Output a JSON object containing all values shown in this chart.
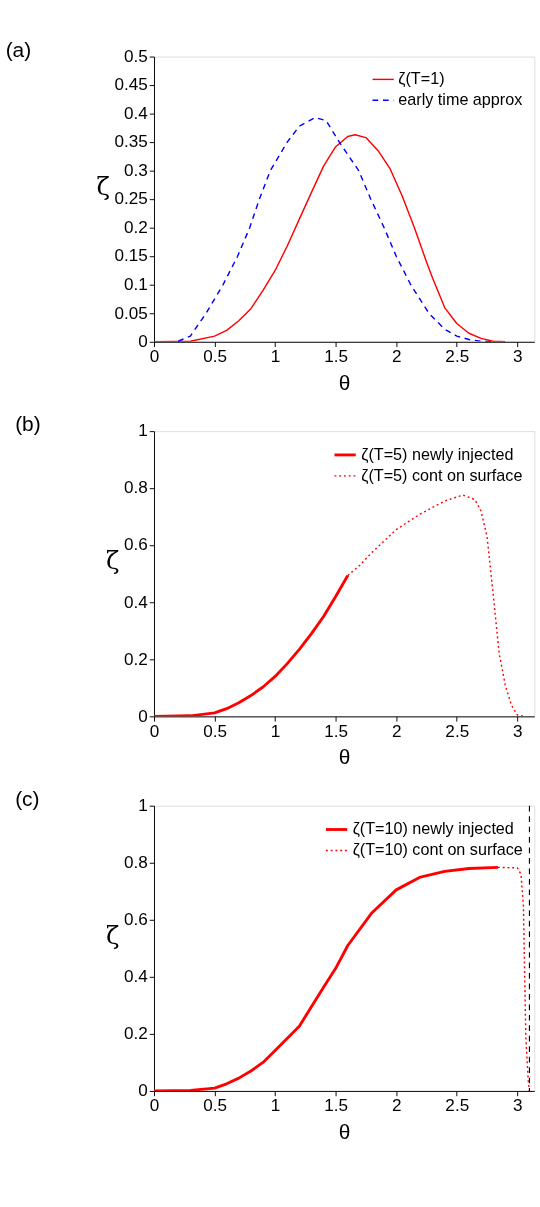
{
  "chart_data": [
    {
      "type": "line",
      "title": "(a)",
      "xlabel": "θ",
      "ylabel": "ζ",
      "xlim": [
        0,
        3.14
      ],
      "xticks": [
        0,
        0.5,
        1,
        1.5,
        2,
        2.5,
        3
      ],
      "ylim": [
        0,
        0.5
      ],
      "yticks": [
        0,
        0.05,
        0.1,
        0.15,
        0.2,
        0.25,
        0.3,
        0.35,
        0.4,
        0.45,
        0.5
      ],
      "grid": false,
      "legend": "top right",
      "series": [
        {
          "name": "ζ(T=1)",
          "color": "#ff0000",
          "line_style": "solid",
          "x": [
            0,
            0.3,
            0.5,
            0.6,
            0.7,
            0.8,
            0.9,
            1.0,
            1.1,
            1.2,
            1.3,
            1.4,
            1.5,
            1.6,
            1.66,
            1.75,
            1.85,
            1.95,
            2.05,
            2.15,
            2.25,
            2.3,
            2.4,
            2.5,
            2.6,
            2.7,
            2.8,
            2.9
          ],
          "values": [
            0,
            0.001,
            0.01,
            0.02,
            0.037,
            0.058,
            0.09,
            0.125,
            0.168,
            0.215,
            0.262,
            0.308,
            0.342,
            0.36,
            0.363,
            0.358,
            0.335,
            0.303,
            0.255,
            0.2,
            0.14,
            0.112,
            0.06,
            0.032,
            0.015,
            0.006,
            0.001,
            0
          ]
        },
        {
          "name": "early time approx",
          "color": "#0000ff",
          "line_style": "dashed",
          "x": [
            0.2,
            0.3,
            0.43,
            0.57,
            0.69,
            0.79,
            0.87,
            0.96,
            1.1,
            1.2,
            1.33,
            1.42,
            1.53,
            1.69,
            1.79,
            1.9,
            2.0,
            2.12,
            2.27,
            2.4,
            2.5,
            2.6,
            2.7,
            2.8
          ],
          "values": [
            0.001,
            0.01,
            0.05,
            0.1,
            0.15,
            0.2,
            0.25,
            0.3,
            0.35,
            0.378,
            0.393,
            0.388,
            0.35,
            0.3,
            0.25,
            0.2,
            0.15,
            0.1,
            0.05,
            0.022,
            0.01,
            0.004,
            0.001,
            0
          ]
        }
      ]
    },
    {
      "type": "line",
      "title": "(b)",
      "xlabel": "θ",
      "ylabel": "ζ",
      "xlim": [
        0,
        3.14
      ],
      "xticks": [
        0,
        0.5,
        1,
        1.5,
        2,
        2.5,
        3
      ],
      "ylim": [
        0,
        1
      ],
      "yticks": [
        0,
        0.2,
        0.4,
        0.6,
        0.8,
        1
      ],
      "grid": false,
      "legend": "top right",
      "series": [
        {
          "name": "ζ(T=5) newly injected",
          "color": "#ff0000",
          "line_style": "solid",
          "x": [
            0,
            0.3,
            0.5,
            0.6,
            0.7,
            0.8,
            0.9,
            1.0,
            1.1,
            1.2,
            1.3,
            1.4,
            1.5,
            1.6
          ],
          "values": [
            0,
            0.002,
            0.012,
            0.027,
            0.048,
            0.073,
            0.103,
            0.14,
            0.185,
            0.235,
            0.29,
            0.35,
            0.42,
            0.494
          ]
        },
        {
          "name": "ζ(T=5) cont on surface",
          "color": "#ff0000",
          "line_style": "dotted",
          "x": [
            1.6,
            1.7,
            1.8,
            2.0,
            2.2,
            2.4,
            2.55,
            2.65,
            2.7,
            2.75,
            2.8,
            2.85,
            2.9,
            2.95,
            3.0,
            3.05
          ],
          "values": [
            0.494,
            0.53,
            0.575,
            0.655,
            0.71,
            0.755,
            0.776,
            0.76,
            0.72,
            0.63,
            0.43,
            0.22,
            0.11,
            0.04,
            0.005,
            0
          ]
        }
      ]
    },
    {
      "type": "line",
      "title": "(c)",
      "xlabel": "θ",
      "ylabel": "ζ",
      "xlim": [
        0,
        3.14
      ],
      "xticks": [
        0,
        0.5,
        1,
        1.5,
        2,
        2.5,
        3
      ],
      "ylim": [
        0,
        1
      ],
      "yticks": [
        0,
        0.2,
        0.4,
        0.6,
        0.8,
        1
      ],
      "grid": false,
      "legend": "top right",
      "ref_lines": [
        {
          "axis": "x",
          "value": 3.1,
          "color": "#000000",
          "line_style": "dashed"
        }
      ],
      "series": [
        {
          "name": "ζ(T=10) newly injected",
          "color": "#ff0000",
          "line_style": "solid",
          "x": [
            0,
            0.3,
            0.5,
            0.6,
            0.7,
            0.8,
            0.9,
            1.0,
            1.2,
            1.4,
            1.5,
            1.6,
            1.8,
            2.0,
            2.2,
            2.4,
            2.6,
            2.84
          ],
          "values": [
            0,
            0.002,
            0.01,
            0.025,
            0.045,
            0.07,
            0.1,
            0.142,
            0.227,
            0.364,
            0.43,
            0.51,
            0.625,
            0.705,
            0.75,
            0.77,
            0.78,
            0.784
          ]
        },
        {
          "name": "ζ(T=10) cont on surface",
          "color": "#ff0000",
          "line_style": "dotted",
          "x": [
            2.84,
            3.0,
            3.03,
            3.05,
            3.06,
            3.07,
            3.09,
            3.1
          ],
          "values": [
            0.784,
            0.782,
            0.76,
            0.65,
            0.42,
            0.19,
            0.035,
            0
          ]
        }
      ]
    }
  ]
}
